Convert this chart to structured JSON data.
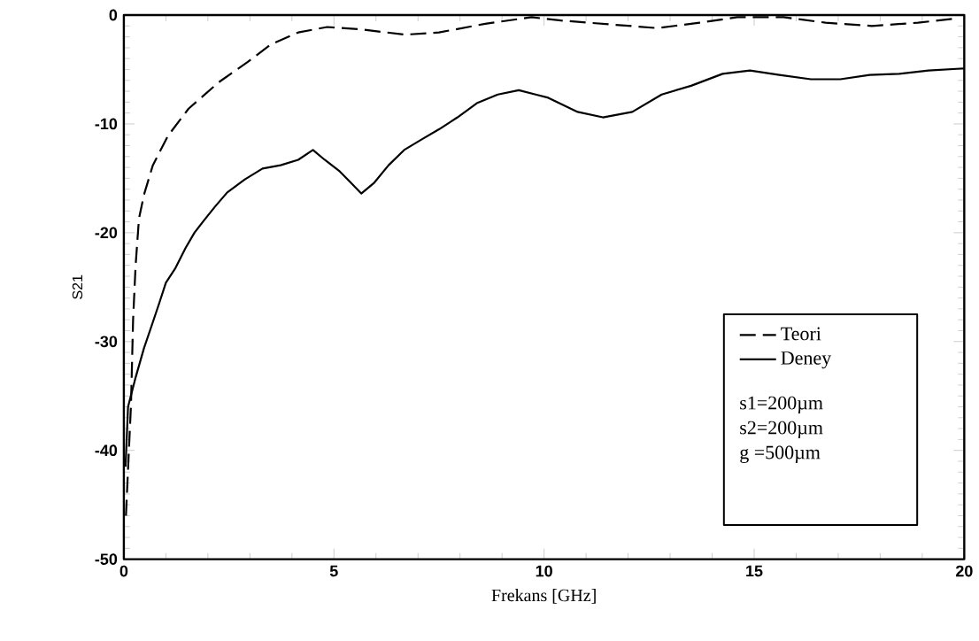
{
  "chart_data": {
    "type": "line",
    "xlabel": "Frekans [GHz]",
    "ylabel": "S21",
    "xlim": [
      0,
      20
    ],
    "ylim": [
      -50,
      0
    ],
    "xticks": [
      0,
      5,
      10,
      15,
      20
    ],
    "yticks": [
      -50,
      -40,
      -30,
      -20,
      -10,
      0
    ],
    "legend": "bottom right",
    "marker": "none",
    "grid": false,
    "annotations": [
      "s1=200µm",
      "s2=200µm",
      "g =500µm"
    ],
    "series": [
      {
        "name": "Teori",
        "color": "#000000",
        "line_style": "dashed",
        "x": [
          0.05,
          0.12,
          0.17,
          0.22,
          0.28,
          0.36,
          0.48,
          0.69,
          1.05,
          1.54,
          2.25,
          2.95,
          3.5,
          4.15,
          4.84,
          5.6,
          6.7,
          7.5,
          8.6,
          9.7,
          10.4,
          11.7,
          12.7,
          13.7,
          14.6,
          15.7,
          16.7,
          17.8,
          18.9,
          19.85
        ],
        "values": [
          -46,
          -40,
          -35.8,
          -28,
          -23,
          -18.7,
          -16.5,
          -13.8,
          -11.1,
          -8.6,
          -6.2,
          -4.3,
          -2.7,
          -1.6,
          -1.1,
          -1.3,
          -1.8,
          -1.6,
          -0.8,
          -0.2,
          -0.5,
          -0.9,
          -1.2,
          -0.7,
          -0.2,
          -0.2,
          -0.7,
          -1.0,
          -0.7,
          -0.3
        ]
      },
      {
        "name": "Deney",
        "color": "#000000",
        "line_style": "solid",
        "x": [
          0.04,
          0.1,
          0.28,
          0.48,
          0.63,
          0.84,
          1.0,
          1.22,
          1.47,
          1.68,
          1.9,
          2.17,
          2.46,
          2.88,
          3.3,
          3.73,
          4.15,
          4.5,
          4.78,
          5.12,
          5.4,
          5.65,
          5.96,
          6.3,
          6.67,
          7.1,
          7.5,
          7.94,
          8.4,
          8.9,
          9.4,
          9.8,
          10.1,
          10.8,
          11.4,
          12.1,
          12.8,
          13.5,
          14.25,
          14.9,
          15.6,
          16.35,
          17.05,
          17.75,
          18.45,
          19.15,
          20
        ],
        "values": [
          -41.5,
          -36,
          -33.3,
          -30.6,
          -28.9,
          -26.5,
          -24.6,
          -23.3,
          -21.4,
          -20,
          -18.9,
          -17.6,
          -16.3,
          -15.1,
          -14.1,
          -13.8,
          -13.3,
          -12.4,
          -13.3,
          -14.3,
          -15.4,
          -16.4,
          -15.4,
          -13.8,
          -12.4,
          -11.4,
          -10.5,
          -9.4,
          -8.1,
          -7.3,
          -6.9,
          -7.3,
          -7.6,
          -8.9,
          -9.4,
          -8.9,
          -7.3,
          -6.5,
          -5.4,
          -5.1,
          -5.5,
          -5.9,
          -5.9,
          -5.5,
          -5.4,
          -5.1,
          -4.9
        ]
      }
    ]
  }
}
